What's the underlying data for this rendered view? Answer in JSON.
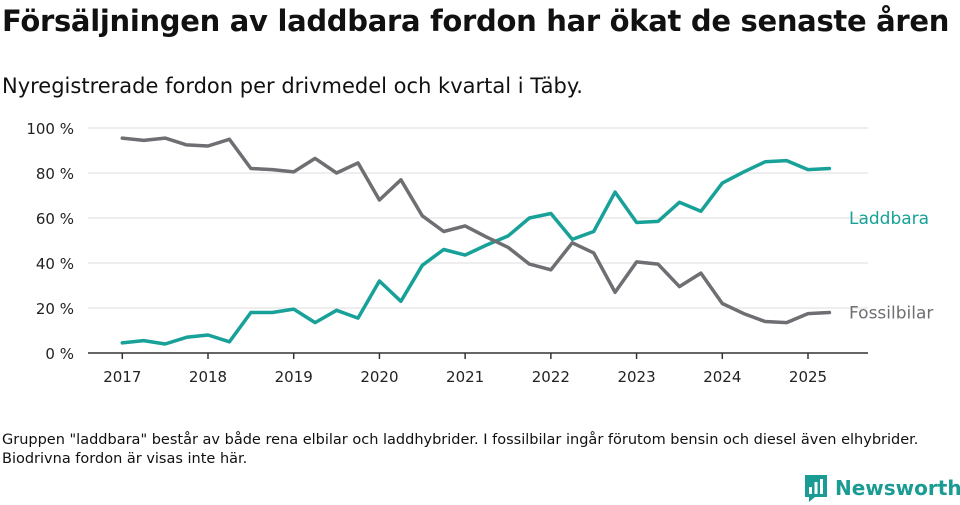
{
  "title": "Försäljningen av laddbara fordon har ökat de senaste åren",
  "subtitle": "Nyregistrerade fordon per drivmedel och kvartal i Täby.",
  "footnote": "Gruppen \"laddbara\" består av både rena elbilar och laddhybrider. I fossilbilar ingår förutom bensin och diesel även elhybrider. Biodrivna fordon är visas inte här.",
  "brand": {
    "name": "Newsworthy",
    "icon": "newsworthy-logo-icon",
    "color": "#1a9b93"
  },
  "chart_data": {
    "type": "line",
    "ylim": [
      0,
      100
    ],
    "y_ticks": [
      {
        "value": 0,
        "label": "0 %"
      },
      {
        "value": 20,
        "label": "20 %"
      },
      {
        "value": 40,
        "label": "40 %"
      },
      {
        "value": 60,
        "label": "60 %"
      },
      {
        "value": 80,
        "label": "80 %"
      },
      {
        "value": 100,
        "label": "100 %"
      }
    ],
    "x_ticks": [
      {
        "value": 2017,
        "label": "2017"
      },
      {
        "value": 2018,
        "label": "2018"
      },
      {
        "value": 2019,
        "label": "2019"
      },
      {
        "value": 2020,
        "label": "2020"
      },
      {
        "value": 2021,
        "label": "2021"
      },
      {
        "value": 2022,
        "label": "2022"
      },
      {
        "value": 2023,
        "label": "2023"
      },
      {
        "value": 2024,
        "label": "2024"
      },
      {
        "value": 2025,
        "label": "2025"
      }
    ],
    "xlim": [
      2016.6,
      2025.7
    ],
    "grid": true,
    "legend": "direct labels right of lines",
    "x": [
      2017.0,
      2017.25,
      2017.5,
      2017.75,
      2018.0,
      2018.25,
      2018.5,
      2018.75,
      2019.0,
      2019.25,
      2019.5,
      2019.75,
      2020.0,
      2020.25,
      2020.5,
      2020.75,
      2021.0,
      2021.25,
      2021.5,
      2021.75,
      2022.0,
      2022.25,
      2022.5,
      2022.75,
      2023.0,
      2023.25,
      2023.5,
      2023.75,
      2024.0,
      2024.25,
      2024.5,
      2024.75,
      2025.0,
      2025.25
    ],
    "series": [
      {
        "name": "Laddbara",
        "color": "#17a198",
        "values": [
          4.5,
          5.5,
          4,
          7,
          8,
          5,
          18,
          18,
          19.5,
          13.5,
          19,
          15.5,
          32,
          23,
          39,
          46,
          43.5,
          48,
          52,
          60,
          62,
          50.5,
          54,
          71.5,
          58,
          58.5,
          67,
          63,
          75.5,
          80.5,
          85,
          85.5,
          81.5,
          82
        ]
      },
      {
        "name": "Fossilbilar",
        "color": "#6e6e73",
        "values": [
          95.5,
          94.5,
          95.5,
          92.5,
          92,
          95,
          82,
          81.5,
          80.5,
          86.5,
          80,
          84.5,
          68,
          77,
          61,
          54,
          56.5,
          51.5,
          47,
          39.5,
          37,
          49,
          44.5,
          27,
          40.5,
          39.5,
          29.5,
          35.5,
          22,
          17.5,
          14,
          13.5,
          17.5,
          18
        ]
      }
    ]
  }
}
